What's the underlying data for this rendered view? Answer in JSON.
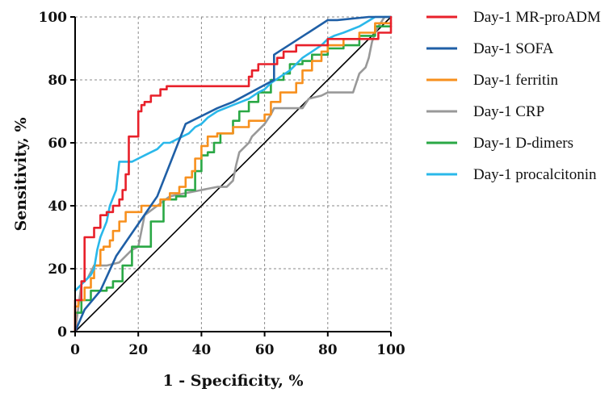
{
  "chart_data": {
    "type": "line",
    "title": "",
    "xlabel": "1 - Specificity, %",
    "ylabel": "Sensitivity, %",
    "xlim": [
      0,
      100
    ],
    "ylim": [
      0,
      100
    ],
    "xticks": [
      "0",
      "20",
      "40",
      "60",
      "80",
      "100"
    ],
    "yticks": [
      "0",
      "20",
      "40",
      "60",
      "80",
      "100"
    ],
    "grid": true,
    "grid_style": "dashed",
    "legend_position": "right",
    "reference_line": {
      "from": [
        0,
        0
      ],
      "to": [
        100,
        100
      ],
      "color": "#000000"
    },
    "series": [
      {
        "name": "Day-1 MR-proADM",
        "color": "#e8202a",
        "x": [
          0,
          0,
          2,
          2,
          3,
          3,
          4,
          4,
          6,
          6,
          8,
          8,
          10,
          10,
          12,
          12,
          14,
          14,
          15,
          15,
          16,
          16,
          17,
          17,
          20,
          20,
          21,
          21,
          22,
          22,
          24,
          24,
          26,
          26,
          27,
          27,
          29,
          29,
          55,
          55,
          56,
          56,
          58,
          58,
          62,
          62,
          64,
          64,
          66,
          66,
          68,
          68,
          70,
          70,
          80,
          80,
          96,
          96,
          100,
          100
        ],
        "y": [
          0,
          10,
          10,
          16,
          16,
          30,
          30,
          30,
          30,
          33,
          33,
          37,
          37,
          38,
          38,
          40,
          40,
          42,
          42,
          45,
          45,
          50,
          50,
          62,
          62,
          70,
          70,
          72,
          72,
          73,
          73,
          75,
          75,
          75,
          75,
          77,
          77,
          78,
          78,
          81,
          81,
          83,
          83,
          85,
          85,
          85,
          85,
          87,
          87,
          89,
          89,
          89,
          89,
          91,
          91,
          93,
          93,
          95,
          95,
          100
        ]
      },
      {
        "name": "Day-1 SOFA",
        "color": "#1f5fa6",
        "x": [
          0,
          3,
          8,
          13,
          26,
          35,
          45,
          50,
          63,
          63,
          80,
          83,
          93,
          95,
          100
        ],
        "y": [
          0,
          7,
          13,
          24,
          43,
          66,
          71,
          73,
          80,
          88,
          99,
          99,
          100,
          100,
          100
        ]
      },
      {
        "name": "Day-1 ferritin",
        "color": "#f7901e",
        "x": [
          0,
          0,
          1,
          1,
          3,
          3,
          5,
          5,
          6,
          6,
          8,
          8,
          9,
          9,
          11,
          11,
          12,
          12,
          14,
          14,
          16,
          16,
          21,
          21,
          27,
          27,
          30,
          30,
          33,
          33,
          35,
          35,
          37,
          37,
          38,
          38,
          40,
          40,
          42,
          42,
          45,
          45,
          50,
          50,
          55,
          55,
          60,
          60,
          62,
          62,
          65,
          65,
          70,
          70,
          72,
          72,
          75,
          75,
          78,
          78,
          80,
          80,
          85,
          85,
          90,
          90,
          95,
          95,
          100
        ],
        "y": [
          0,
          8,
          8,
          10,
          10,
          14,
          14,
          17,
          17,
          21,
          21,
          26,
          26,
          27,
          27,
          29,
          29,
          32,
          32,
          35,
          35,
          38,
          38,
          40,
          40,
          42,
          42,
          44,
          44,
          46,
          46,
          49,
          49,
          51,
          51,
          55,
          55,
          59,
          59,
          62,
          62,
          63,
          63,
          65,
          65,
          67,
          67,
          69,
          69,
          73,
          73,
          76,
          76,
          79,
          79,
          83,
          83,
          86,
          86,
          89,
          89,
          91,
          91,
          93,
          93,
          95,
          95,
          98,
          98
        ]
      },
      {
        "name": "Day-1 CRP",
        "color": "#999999",
        "x": [
          0,
          2,
          4,
          6,
          10,
          14,
          18,
          20,
          22,
          26,
          30,
          35,
          40,
          45,
          48,
          50,
          51,
          52,
          53,
          55,
          56,
          57,
          58,
          60,
          62,
          63,
          66,
          70,
          72,
          74,
          78,
          80,
          82,
          84,
          88,
          90,
          91,
          92,
          93,
          94,
          95,
          96,
          98,
          100
        ],
        "y": [
          0,
          15,
          17,
          21,
          21,
          22,
          26,
          27,
          37,
          40,
          43,
          44,
          45,
          46,
          46,
          48,
          53,
          57,
          58,
          60,
          62,
          63,
          64,
          66,
          69,
          71,
          71,
          71,
          71,
          74,
          75,
          76,
          76,
          76,
          76,
          82,
          83,
          84,
          87,
          92,
          95,
          97,
          100,
          100
        ]
      },
      {
        "name": "Day-1 D-dimers",
        "color": "#2aa845",
        "x": [
          0,
          0,
          2,
          2,
          5,
          5,
          10,
          10,
          12,
          12,
          15,
          15,
          18,
          18,
          20,
          20,
          24,
          24,
          28,
          28,
          32,
          32,
          35,
          35,
          38,
          38,
          40,
          40,
          42,
          42,
          44,
          44,
          46,
          46,
          50,
          50,
          52,
          52,
          55,
          55,
          58,
          58,
          62,
          62,
          66,
          66,
          68,
          68,
          72,
          72,
          75,
          75,
          80,
          80,
          85,
          85,
          90,
          90,
          95,
          95,
          100
        ],
        "y": [
          0,
          6,
          6,
          10,
          10,
          13,
          13,
          14,
          14,
          16,
          16,
          21,
          21,
          27,
          27,
          27,
          27,
          35,
          35,
          42,
          42,
          43,
          43,
          45,
          45,
          51,
          51,
          56,
          56,
          57,
          57,
          60,
          60,
          63,
          63,
          67,
          67,
          70,
          70,
          73,
          73,
          76,
          76,
          80,
          80,
          82,
          82,
          85,
          85,
          86,
          86,
          88,
          88,
          90,
          90,
          91,
          91,
          94,
          94,
          97,
          97
        ]
      },
      {
        "name": "Day-1 procalcitonin",
        "color": "#2ab8ea",
        "x": [
          0,
          1,
          2,
          3,
          4,
          5,
          6,
          7,
          8,
          10,
          11,
          13,
          14,
          16,
          18,
          20,
          22,
          24,
          26,
          28,
          30,
          32,
          34,
          36,
          38,
          40,
          42,
          45,
          50,
          55,
          58,
          60,
          62,
          65,
          68,
          70,
          72,
          75,
          78,
          80,
          82,
          85,
          90,
          95,
          100
        ],
        "y": [
          13,
          14,
          15,
          16,
          17,
          18,
          20,
          26,
          30,
          35,
          40,
          45,
          54,
          54,
          54,
          55,
          56,
          57,
          58,
          60,
          60,
          61,
          62,
          63,
          65,
          66,
          68,
          70,
          72,
          74,
          76,
          77,
          79,
          81,
          83,
          85,
          87,
          89,
          91,
          93,
          94,
          95,
          97,
          100,
          100
        ]
      }
    ]
  }
}
